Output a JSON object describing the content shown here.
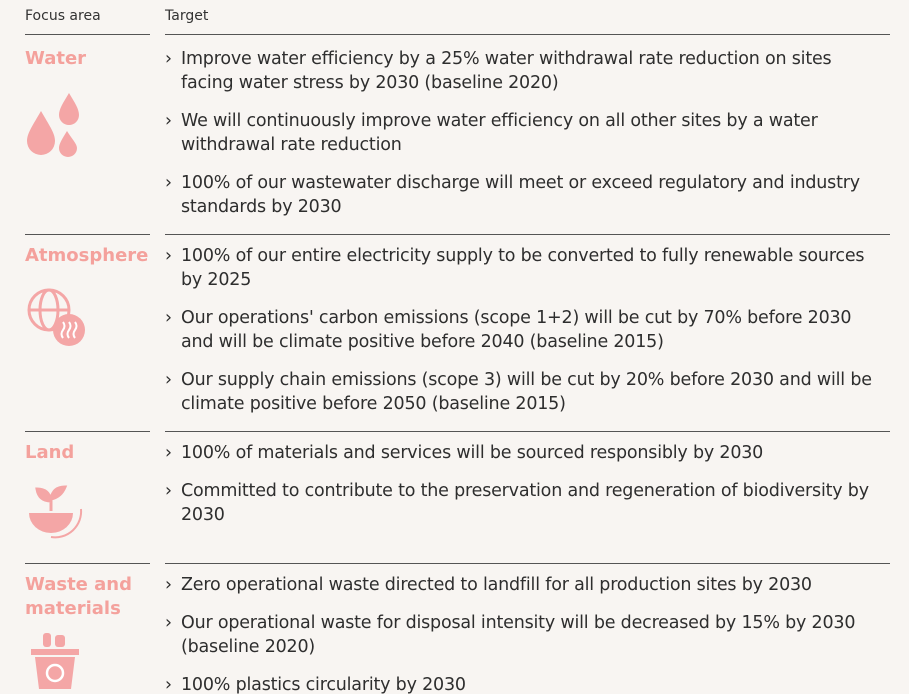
{
  "header": {
    "focus_area": "Focus area",
    "target": "Target"
  },
  "sections": [
    {
      "focus": "Water",
      "targets": [
        "Improve water efficiency by a 25% water withdrawal rate reduction on sites facing water stress by 2030 (baseline 2020)",
        "We will continuously improve water efficiency on all other sites by a water withdrawal rate reduction",
        "100% of our wastewater discharge will meet or exceed regulatory and industry standards by 2030"
      ]
    },
    {
      "focus": "Atmosphere",
      "targets": [
        "100% of our entire electricity supply to be converted to fully renewable sources by 2025",
        "Our operations' carbon emissions (scope 1+2) will be cut by 70% before 2030 and will be climate positive before 2040 (baseline 2015)",
        "Our supply chain emissions (scope 3) will be cut by 20% before 2030 and will be climate positive before 2050 (baseline 2015)"
      ]
    },
    {
      "focus": "Land",
      "targets": [
        "100% of materials and services will be sourced responsibly by 2030",
        "Committed to contribute to the preservation and regeneration of biodiversity by 2030"
      ]
    },
    {
      "focus": "Waste and materials",
      "targets": [
        "Zero operational waste directed to landfill for all production sites by 2030",
        "Our operational waste for disposal intensity will be decreased by 15% by 2030 (baseline 2020)",
        "100% plastics circularity by 2030"
      ]
    }
  ]
}
